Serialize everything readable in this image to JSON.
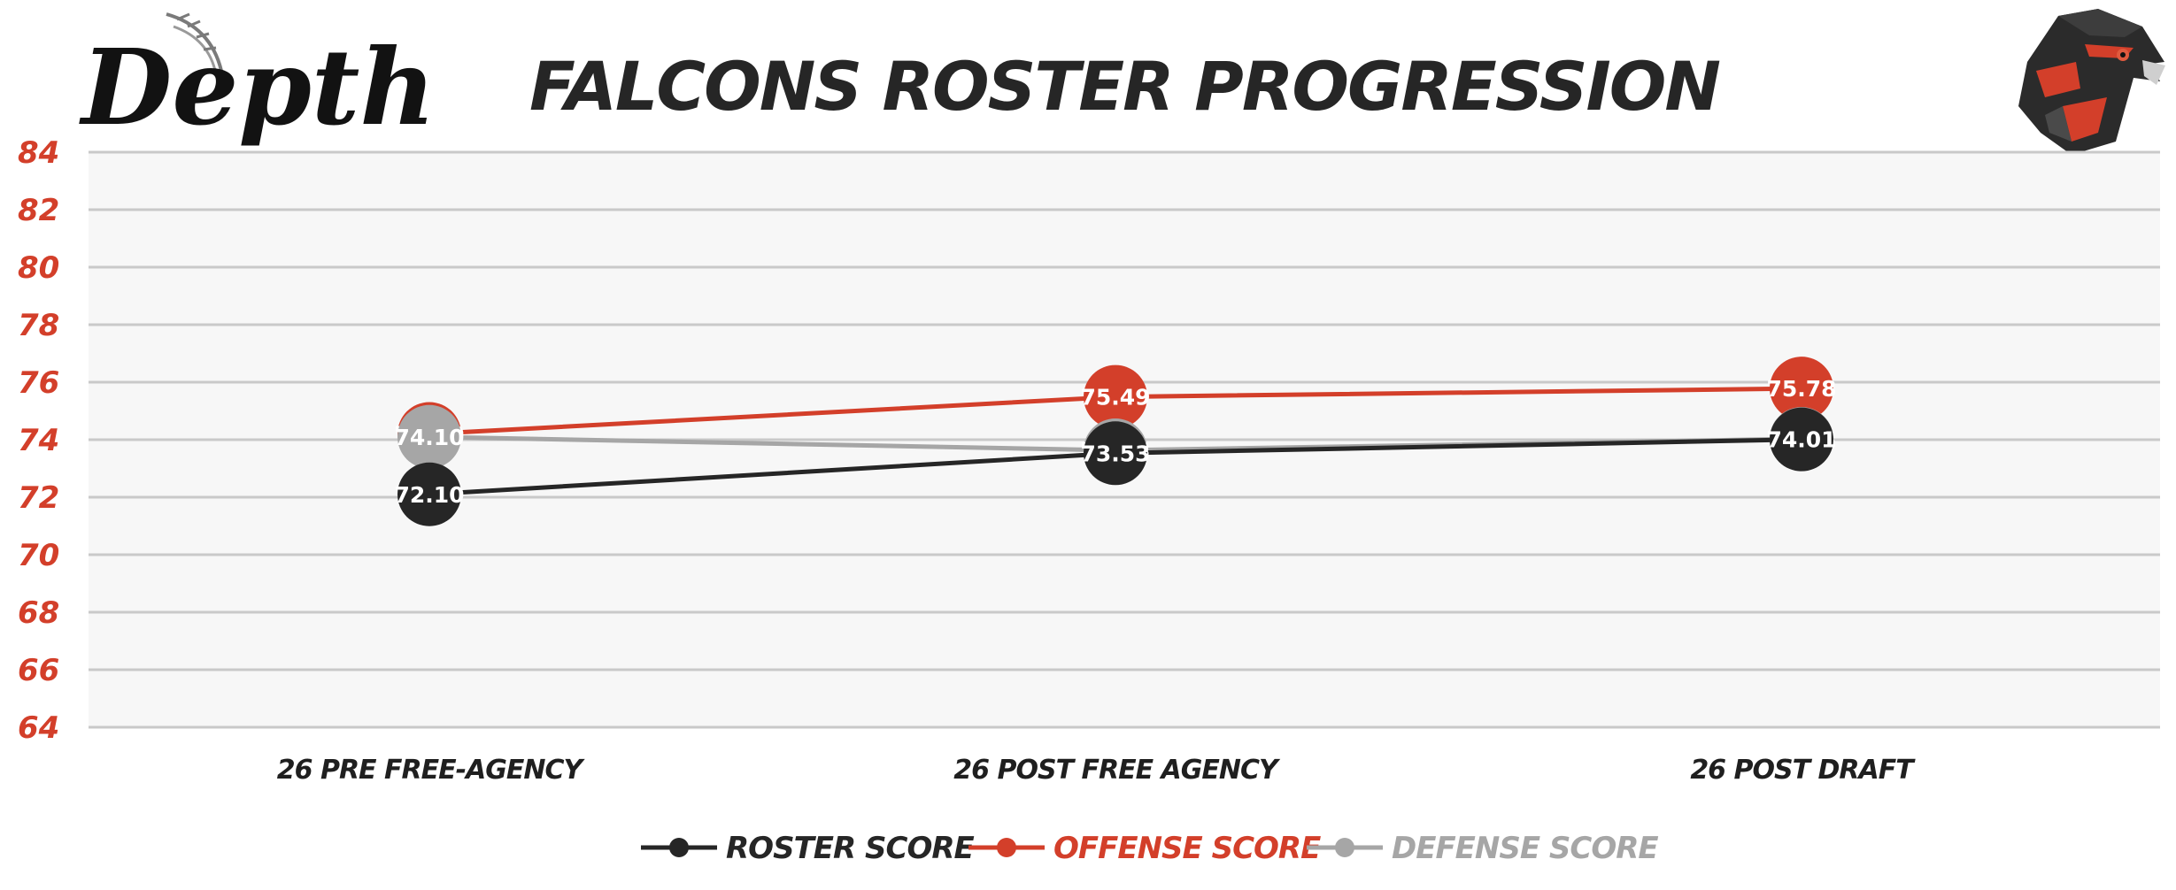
{
  "brand": {
    "logo_text": "Depth",
    "team_logo_icon": "falcon-head-icon"
  },
  "colors": {
    "roster": "#262626",
    "offense": "#d33f2a",
    "defense": "#a6a6a6",
    "grid": "#c9c9c9",
    "plot_bg": "#f7f7f7",
    "ytick": "#d33f2a"
  },
  "chart_data": {
    "type": "line",
    "title": "FALCONS ROSTER PROGRESSION",
    "xlabel": "",
    "ylabel": "",
    "categories": [
      "26 PRE FREE-AGENCY",
      "26 POST FREE AGENCY",
      "26 POST DRAFT"
    ],
    "ylim": [
      64,
      84
    ],
    "yticks": [
      64,
      66,
      68,
      70,
      72,
      74,
      76,
      78,
      80,
      82,
      84
    ],
    "grid": true,
    "legend_position": "bottom",
    "series": [
      {
        "name": "ROSTER SCORE",
        "color": "#262626",
        "values": [
          72.1,
          73.53,
          74.01
        ]
      },
      {
        "name": "OFFENSE SCORE",
        "color": "#d33f2a",
        "values": [
          74.2,
          75.49,
          75.78
        ]
      },
      {
        "name": "DEFENSE SCORE",
        "color": "#a6a6a6",
        "values": [
          74.1,
          73.63,
          74.03
        ]
      }
    ]
  }
}
